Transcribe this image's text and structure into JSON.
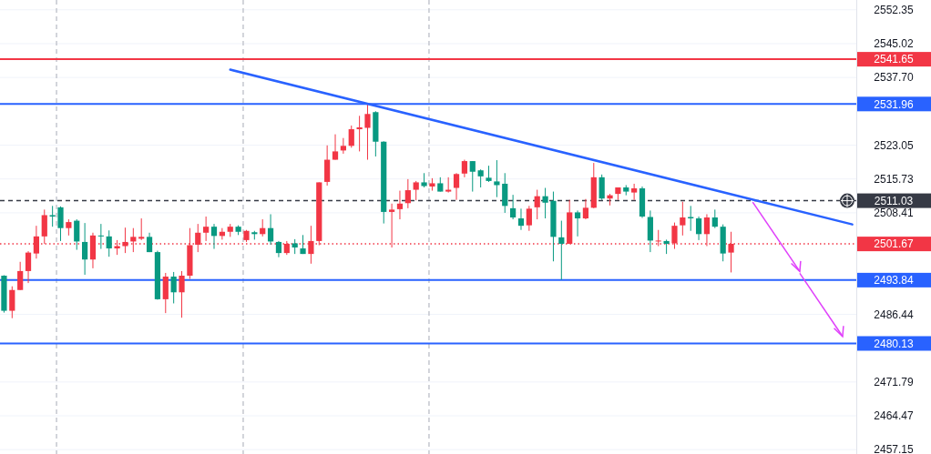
{
  "chart_data": {
    "type": "candlestick",
    "categories": [
      null,
      null,
      null,
      null,
      null,
      null,
      null,
      null,
      null,
      null,
      null,
      null,
      null,
      null,
      null,
      null,
      null,
      null,
      null,
      null,
      null,
      null,
      null,
      null,
      null,
      null,
      null,
      null,
      null,
      null,
      null,
      null,
      null,
      null,
      null,
      null,
      null,
      null,
      null,
      null,
      null,
      null,
      null,
      null,
      null,
      null,
      null,
      null,
      null,
      null,
      null,
      null,
      null,
      null,
      null,
      null,
      null,
      null,
      null,
      null,
      null,
      null,
      null,
      null,
      null,
      null,
      null,
      null,
      null,
      null,
      null,
      null,
      null,
      null,
      null,
      null,
      null,
      null,
      null,
      null,
      null,
      null,
      null,
      null,
      null,
      null,
      null,
      null,
      null,
      null,
      null,
      null,
      null,
      null,
      null,
      null,
      null,
      null,
      null,
      null,
      null,
      null,
      null,
      null,
      null,
      null
    ],
    "ohlc": [
      [
        2494.8,
        2494.9,
        2486.8,
        2487.2
      ],
      [
        2487.2,
        2492.5,
        2485.6,
        2491.7
      ],
      [
        2491.7,
        2497.8,
        2491.7,
        2495.8
      ],
      [
        2495.8,
        2500.1,
        2493.2,
        2499.8
      ],
      [
        2499.6,
        2505.6,
        2498.5,
        2503.3
      ],
      [
        2503.3,
        2509.1,
        2501.7,
        2507.9
      ],
      [
        2507.9,
        2509.9,
        2505.4,
        2507.6
      ],
      [
        2509.6,
        2509.8,
        2502.3,
        2505.1
      ],
      [
        2505.1,
        2507.0,
        2503.5,
        2506.4
      ],
      [
        2506.7,
        2507.0,
        2500.4,
        2502.2
      ],
      [
        2502.1,
        2506.2,
        2495.0,
        2498.3
      ],
      [
        2498.3,
        2504.1,
        2496.4,
        2503.5
      ],
      [
        2503.5,
        2506.0,
        2500.6,
        2503.3
      ],
      [
        2503.3,
        2504.6,
        2498.9,
        2500.7
      ],
      [
        2500.7,
        2502.5,
        2499.3,
        2501.2
      ],
      [
        2501.2,
        2505.2,
        2499.7,
        2502.1
      ],
      [
        2502.2,
        2505.1,
        2499.9,
        2503.2
      ],
      [
        2502.8,
        2507.2,
        2502.5,
        2503.2
      ],
      [
        2503.2,
        2504.1,
        2499.9,
        2499.9
      ],
      [
        2499.9,
        2500.2,
        2489.6,
        2489.7
      ],
      [
        2489.7,
        2495.4,
        2486.7,
        2494.6
      ],
      [
        2494.6,
        2495.6,
        2488.8,
        2491.2
      ],
      [
        2491.2,
        2495.8,
        2485.7,
        2494.8
      ],
      [
        2494.8,
        2505.1,
        2494.1,
        2501.4
      ],
      [
        2501.5,
        2506.0,
        2499.9,
        2504.1
      ],
      [
        2504.1,
        2507.6,
        2502.3,
        2505.4
      ],
      [
        2505.4,
        2506.0,
        2500.6,
        2503.4
      ],
      [
        2503.4,
        2505.1,
        2502.6,
        2504.3
      ],
      [
        2504.3,
        2506.0,
        2503.2,
        2505.4
      ],
      [
        2505.4,
        2505.7,
        2503.6,
        2504.3
      ],
      [
        2502.5,
        2504.7,
        2502.1,
        2504.5
      ],
      [
        2504.2,
        2504.5,
        2502.6,
        2503.8
      ],
      [
        2503.8,
        2507.0,
        2503.3,
        2505.1
      ],
      [
        2505.1,
        2508.1,
        2501.5,
        2502.2
      ],
      [
        2502.1,
        2502.3,
        2498.8,
        2499.7
      ],
      [
        2499.7,
        2502.3,
        2499.3,
        2501.7
      ],
      [
        2501.8,
        2502.7,
        2499.5,
        2500.9
      ],
      [
        2500.7,
        2503.6,
        2499.5,
        2499.5
      ],
      [
        2499.5,
        2505.6,
        2497.4,
        2502.3
      ],
      [
        2502.3,
        2515.0,
        2501.4,
        2515.0
      ],
      [
        2515.1,
        2523.0,
        2514.3,
        2519.9
      ],
      [
        2519.9,
        2525.4,
        2519.9,
        2521.7
      ],
      [
        2521.9,
        2524.6,
        2521.2,
        2522.9
      ],
      [
        2522.9,
        2527.3,
        2522.5,
        2526.5
      ],
      [
        2526.5,
        2529.4,
        2521.7,
        2526.9
      ],
      [
        2526.8,
        2531.9,
        2519.9,
        2529.8
      ],
      [
        2530.2,
        2530.4,
        2520.6,
        2523.8
      ],
      [
        2523.8,
        2523.9,
        2506.1,
        2508.6
      ],
      [
        2508.6,
        2510.4,
        2500.9,
        2509.1
      ],
      [
        2509.2,
        2513.2,
        2507.0,
        2510.4
      ],
      [
        2510.5,
        2515.7,
        2509.4,
        2513.3
      ],
      [
        2513.4,
        2515.3,
        2511.1,
        2515.0
      ],
      [
        2515.0,
        2517.0,
        2513.9,
        2514.2
      ],
      [
        2514.1,
        2515.9,
        2513.2,
        2514.8
      ],
      [
        2514.8,
        2516.1,
        2513.0,
        2513.0
      ],
      [
        2513.0,
        2516.1,
        2512.8,
        2513.4
      ],
      [
        2513.8,
        2517.0,
        2511.2,
        2516.8
      ],
      [
        2516.9,
        2519.9,
        2516.1,
        2519.6
      ],
      [
        2519.6,
        2519.6,
        2513.0,
        2517.3
      ],
      [
        2517.6,
        2517.8,
        2513.9,
        2516.3
      ],
      [
        2516.0,
        2518.6,
        2515.1,
        2515.3
      ],
      [
        2515.2,
        2519.8,
        2511.8,
        2514.4
      ],
      [
        2514.7,
        2517.0,
        2508.4,
        2509.9
      ],
      [
        2509.4,
        2512.3,
        2507.0,
        2507.4
      ],
      [
        2507.2,
        2509.3,
        2504.7,
        2505.6
      ],
      [
        2505.7,
        2509.9,
        2504.5,
        2509.3
      ],
      [
        2509.6,
        2513.4,
        2507.0,
        2512.0
      ],
      [
        2512.0,
        2513.8,
        2507.2,
        2510.6
      ],
      [
        2511.0,
        2513.0,
        2497.9,
        2503.2
      ],
      [
        2503.1,
        2506.7,
        2493.9,
        2501.7
      ],
      [
        2501.7,
        2511.2,
        2501.7,
        2508.5
      ],
      [
        2508.5,
        2508.9,
        2503.3,
        2507.2
      ],
      [
        2507.2,
        2511.4,
        2507.0,
        2509.5
      ],
      [
        2509.5,
        2519.2,
        2509.4,
        2516.1
      ],
      [
        2516.1,
        2516.7,
        2511.2,
        2511.5
      ],
      [
        2511.5,
        2512.5,
        2510.0,
        2512.2
      ],
      [
        2512.5,
        2513.9,
        2511.2,
        2513.9
      ],
      [
        2513.9,
        2514.4,
        2512.2,
        2513.0
      ],
      [
        2512.8,
        2514.7,
        2511.2,
        2513.7
      ],
      [
        2513.7,
        2514.1,
        2507.3,
        2507.6
      ],
      [
        2507.5,
        2508.9,
        2499.9,
        2502.4
      ],
      [
        2502.2,
        2504.7,
        2501.2,
        2502.4
      ],
      [
        2502.3,
        2502.6,
        2499.5,
        2501.7
      ],
      [
        2501.8,
        2506.3,
        2500.6,
        2505.6
      ],
      [
        2505.7,
        2510.8,
        2503.5,
        2507.4
      ],
      [
        2507.5,
        2509.9,
        2504.5,
        2507.2
      ],
      [
        2507.2,
        2507.6,
        2502.5,
        2503.8
      ],
      [
        2503.8,
        2508.1,
        2501.2,
        2507.4
      ],
      [
        2507.4,
        2509.1,
        2505.1,
        2505.4
      ],
      [
        2505.4,
        2505.9,
        2497.9,
        2499.6
      ],
      [
        2499.8,
        2504.3,
        2495.5,
        2501.7
      ],
      null,
      null,
      null,
      null,
      null,
      null,
      null,
      null,
      null,
      null,
      null,
      null,
      null,
      null,
      null
    ],
    "colors": [
      "#089981",
      "#f23645",
      "#f23645",
      "#f23645",
      "#f23645",
      "#f23645",
      "#089981",
      "#089981",
      "#f23645",
      "#089981",
      "#089981",
      "#f23645",
      "#089981",
      "#089981",
      "#f23645",
      "#f23645",
      "#f23645",
      "#f23645",
      "#089981",
      "#089981",
      "#f23645",
      "#089981",
      "#f23645",
      "#f23645",
      "#f23645",
      "#f23645",
      "#089981",
      "#f23645",
      "#f23645",
      "#089981",
      "#f23645",
      "#089981",
      "#f23645",
      "#089981",
      "#089981",
      "#f23645",
      "#089981",
      "#089981",
      "#f23645",
      "#f23645",
      "#f23645",
      "#f23645",
      "#f23645",
      "#f23645",
      "#f23645",
      "#f23645",
      "#089981",
      "#089981",
      "#f23645",
      "#f23645",
      "#f23645",
      "#f23645",
      "#089981",
      "#f23645",
      "#089981",
      "#f23645",
      "#f23645",
      "#f23645",
      "#089981",
      "#089981",
      "#089981",
      "#089981",
      "#089981",
      "#089981",
      "#089981",
      "#f23645",
      "#f23645",
      "#089981",
      "#089981",
      "#089981",
      "#f23645",
      "#089981",
      "#f23645",
      "#f23645",
      "#089981",
      "#f23645",
      "#f23645",
      "#089981",
      "#f23645",
      "#089981",
      "#089981",
      "#f23645",
      "#089981",
      "#f23645",
      "#f23645",
      "#089981",
      "#089981",
      "#f23645",
      "#089981",
      "#089981",
      "#f23645",
      null,
      null,
      null,
      null,
      null,
      null,
      null,
      null,
      null,
      null,
      null,
      null,
      null,
      null,
      null
    ],
    "series": [
      {
        "type": "line",
        "values": [
          null,
          null,
          null,
          null,
          null,
          null,
          null,
          null,
          null,
          null,
          null,
          null,
          null,
          null,
          null,
          null,
          null,
          null,
          null,
          null,
          null,
          null,
          null,
          null,
          null,
          null,
          null,
          null,
          2539.4,
          null,
          null,
          null,
          null,
          null,
          null,
          null,
          null,
          null,
          null,
          null,
          null,
          null,
          null,
          null,
          null,
          null,
          null,
          null,
          null,
          null,
          null,
          null,
          null,
          null,
          null,
          null,
          null,
          null,
          null,
          null,
          null,
          null,
          null,
          null,
          null,
          null,
          null,
          null,
          null,
          null,
          null,
          null,
          null,
          null,
          null,
          null,
          null,
          null,
          null,
          null,
          null,
          null,
          null,
          null,
          null,
          null,
          null,
          null,
          null,
          null,
          null,
          null,
          null,
          null,
          null,
          null,
          null,
          null,
          null,
          null,
          null,
          null,
          null,
          null,
          null,
          2505.9
        ],
        "color": "#2962ff"
      }
    ],
    "ylim": [
      2456.2,
      2552.7
    ],
    "yticks": [
      2552.35,
      2545.02,
      {
        "value": 2537.7,
        "label": "2537.70"
      },
      2523.05,
      2515.73,
      2508.41,
      2486.44,
      2471.79,
      2464.47,
      2457.15
    ],
    "grid": "y",
    "ref_lines": [
      {
        "axis": "y",
        "value": 2541.65,
        "label": "2541.65",
        "color": "#f23645",
        "line_style": "solid"
      },
      {
        "axis": "y",
        "value": 2531.96,
        "label": "2531.96",
        "color": "#2962ff",
        "line_style": "solid"
      },
      {
        "axis": "y",
        "value": 2493.84,
        "label": "2493.84",
        "color": "#2962ff",
        "line_style": "solid"
      },
      {
        "axis": "y",
        "value": 2480.13,
        "label": "2480.13",
        "color": "#2962ff",
        "line_style": "solid"
      },
      {
        "axis": "y",
        "value": 2511.03,
        "label": "2511.03",
        "color": "#363a45",
        "line_style": "dashed"
      },
      {
        "axis": "y",
        "value": 2501.67,
        "label": "2501.67",
        "color": "#f23645",
        "line_style": "dotted"
      }
    ]
  }
}
